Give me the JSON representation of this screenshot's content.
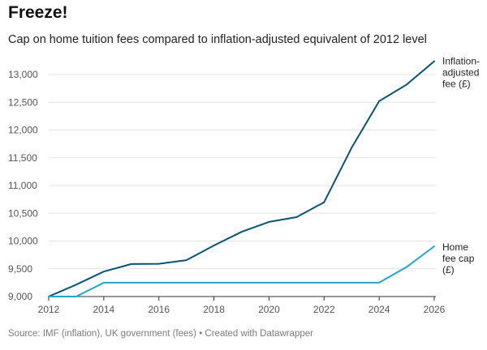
{
  "title": "Freeze!",
  "subtitle": "Cap on home tuition fees compared to inflation-adjusted equivalent of 2012 level",
  "source": "Source: IMF (inflation), UK government (fees) • Created with Datawrapper",
  "chart_data": {
    "type": "line",
    "title": "Freeze!",
    "subtitle": "Cap on home tuition fees compared to inflation-adjusted equivalent of 2012 level",
    "xlabel": "",
    "ylabel": "",
    "xlim": [
      2012,
      2026
    ],
    "ylim": [
      9000,
      13250
    ],
    "xticks": [
      2012,
      2014,
      2016,
      2018,
      2020,
      2022,
      2024,
      2026
    ],
    "yticks": [
      9000,
      9500,
      10000,
      10500,
      11000,
      11500,
      12000,
      12500,
      13000
    ],
    "ytick_labels": [
      "9,000",
      "9,500",
      "10,000",
      "10,500",
      "11,000",
      "11,500",
      "12,000",
      "12,500",
      "13,000"
    ],
    "grid": true,
    "x": [
      2012,
      2013,
      2014,
      2015,
      2016,
      2017,
      2018,
      2019,
      2020,
      2021,
      2022,
      2023,
      2024,
      2025,
      2026
    ],
    "series": [
      {
        "name": "Inflation-adjusted fee (£)",
        "label_lines": [
          "Inflation-",
          "adjusted",
          "fee (£)"
        ],
        "color": "#0b5275",
        "values": [
          9000,
          9215,
          9450,
          9585,
          9590,
          9655,
          9920,
          10165,
          10345,
          10430,
          10700,
          11680,
          12520,
          12820,
          13240
        ]
      },
      {
        "name": "Home fee cap (£)",
        "label_lines": [
          "Home",
          "fee cap",
          "(£)"
        ],
        "color": "#23a5c9",
        "values": [
          9000,
          9000,
          9250,
          9250,
          9250,
          9250,
          9250,
          9250,
          9250,
          9250,
          9250,
          9250,
          9250,
          9535,
          9905
        ]
      }
    ]
  }
}
